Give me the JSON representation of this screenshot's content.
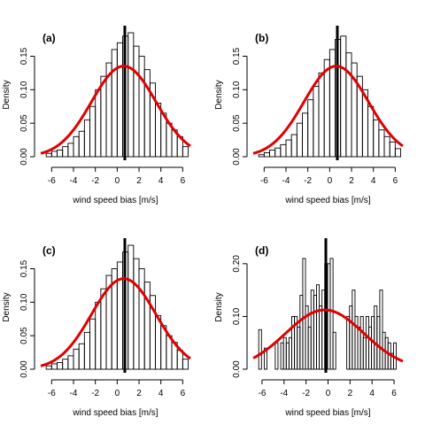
{
  "chart_data": [
    {
      "type": "histogram",
      "panel_label": "(a)",
      "xlabel": "wind speed bias [m/s]",
      "ylabel": "Density",
      "xlim": [
        -7,
        6.7
      ],
      "ylim": [
        0,
        0.185
      ],
      "xticks": [
        -6,
        -4,
        -2,
        0,
        2,
        4,
        6
      ],
      "yticks": [
        0.0,
        0.05,
        0.1,
        0.15
      ],
      "ytick_labels": [
        "0.00",
        "0.05",
        "0.10",
        "0.15"
      ],
      "bin_width": 0.5,
      "bin_start": -6.5,
      "densities": [
        0.005,
        0.008,
        0.01,
        0.015,
        0.02,
        0.03,
        0.038,
        0.055,
        0.075,
        0.1,
        0.12,
        0.14,
        0.16,
        0.17,
        0.18,
        0.185,
        0.165,
        0.15,
        0.13,
        0.11,
        0.08,
        0.065,
        0.05,
        0.04,
        0.03,
        0.015
      ],
      "vline": 0.7,
      "normal_curve": {
        "mean": 0.6,
        "sd": 2.95,
        "color": "#e00000"
      }
    },
    {
      "type": "histogram",
      "panel_label": "(b)",
      "xlabel": "wind speed bias [m/s]",
      "ylabel": "Density",
      "xlim": [
        -7,
        6.7
      ],
      "ylim": [
        0,
        0.185
      ],
      "xticks": [
        -6,
        -4,
        -2,
        0,
        2,
        4,
        6
      ],
      "yticks": [
        0.0,
        0.05,
        0.1,
        0.15
      ],
      "ytick_labels": [
        "0.00",
        "0.05",
        "0.10",
        "0.15"
      ],
      "bin_width": 0.5,
      "bin_start": -6.5,
      "densities": [
        0.003,
        0.006,
        0.01,
        0.013,
        0.018,
        0.025,
        0.033,
        0.05,
        0.065,
        0.085,
        0.105,
        0.125,
        0.145,
        0.16,
        0.175,
        0.18,
        0.155,
        0.14,
        0.12,
        0.1,
        0.075,
        0.055,
        0.04,
        0.03,
        0.022,
        0.012
      ],
      "vline": 0.7,
      "normal_curve": {
        "mean": 0.6,
        "sd": 2.95,
        "color": "#e00000"
      }
    },
    {
      "type": "histogram",
      "panel_label": "(c)",
      "xlabel": "wind speed bias [m/s]",
      "ylabel": "Density",
      "xlim": [
        -7,
        6.7
      ],
      "ylim": [
        0,
        0.185
      ],
      "xticks": [
        -6,
        -4,
        -2,
        0,
        2,
        4,
        6
      ],
      "yticks": [
        0.0,
        0.05,
        0.1,
        0.15
      ],
      "ytick_labels": [
        "0.00",
        "0.05",
        "0.10",
        "0.15"
      ],
      "bin_width": 0.5,
      "bin_start": -6.5,
      "densities": [
        0.005,
        0.008,
        0.01,
        0.015,
        0.02,
        0.03,
        0.038,
        0.055,
        0.075,
        0.1,
        0.12,
        0.14,
        0.15,
        0.16,
        0.175,
        0.185,
        0.165,
        0.15,
        0.13,
        0.11,
        0.08,
        0.065,
        0.05,
        0.04,
        0.028,
        0.015
      ],
      "vline": 0.7,
      "normal_curve": {
        "mean": 0.6,
        "sd": 2.95,
        "color": "#e00000"
      }
    },
    {
      "type": "histogram",
      "panel_label": "(d)",
      "xlabel": "wind speed bias [m/s]",
      "ylabel": "Density",
      "xlim": [
        -6.8,
        6.8
      ],
      "ylim": [
        0,
        0.235
      ],
      "xticks": [
        -6,
        -4,
        -2,
        0,
        2,
        4,
        6
      ],
      "yticks": [
        0.0,
        0.1,
        0.2
      ],
      "ytick_labels": [
        "0.00",
        "0.10",
        "0.20"
      ],
      "bin_width": 0.25,
      "bin_start": -6.3,
      "densities": [
        0.075,
        0.0,
        0.04,
        0.0,
        0.0,
        0.0,
        0.05,
        0.0,
        0.05,
        0.06,
        0.05,
        0.06,
        0.1,
        0.1,
        0.08,
        0.14,
        0.21,
        0.12,
        0.08,
        0.15,
        0.14,
        0.16,
        0.12,
        0.15,
        0.2,
        0.2,
        0.21,
        0.07,
        0.0,
        0.0,
        0.0,
        0.0,
        0.1,
        0.12,
        0.15,
        0.1,
        0.08,
        0.1,
        0.06,
        0.1,
        0.08,
        0.1,
        0.12,
        0.1,
        0.15,
        0.07,
        0.06,
        0.05,
        0.03,
        0.05
      ],
      "vline": -0.2,
      "normal_curve": {
        "mean": -0.3,
        "sd": 3.55,
        "color": "#e00000"
      }
    }
  ]
}
